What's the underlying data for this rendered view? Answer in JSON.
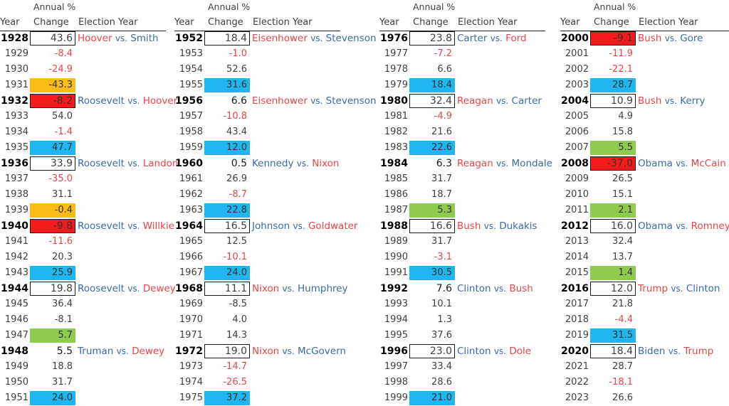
{
  "headers": {
    "annual": "Annual %",
    "year": "Year",
    "change": "Change",
    "election": "Election Year",
    "vs": "vs."
  },
  "colors": {
    "red_text": "#e8464b",
    "blue_text": "#3b6aa8",
    "cyan": "#1fb6f0",
    "green": "#8fcb4f",
    "orange": "#fbbc1a",
    "red": "#f71a1a"
  },
  "panels": [
    {
      "rows": [
        {
          "year": "1928",
          "value": "43.6",
          "election": true,
          "dem": "Smith",
          "rep": "Hoover",
          "first": "Hoover",
          "second": "Smith"
        },
        {
          "year": "1929",
          "value": "-8.4"
        },
        {
          "year": "1930",
          "value": "-24.9"
        },
        {
          "year": "1931",
          "value": "-43.3",
          "fill": "orange"
        },
        {
          "year": "1932",
          "value": "-8.2",
          "election": true,
          "fill": "red",
          "first": "Roosevelt",
          "second": "Hoover"
        },
        {
          "year": "1933",
          "value": "54.0"
        },
        {
          "year": "1934",
          "value": "-1.4"
        },
        {
          "year": "1935",
          "value": "47.7",
          "fill": "cyan"
        },
        {
          "year": "1936",
          "value": "33.9",
          "election": true,
          "first": "Roosevelt",
          "second": "Landon"
        },
        {
          "year": "1937",
          "value": "-35.0"
        },
        {
          "year": "1938",
          "value": "31.1"
        },
        {
          "year": "1939",
          "value": "-0.4",
          "fill": "orange"
        },
        {
          "year": "1940",
          "value": "-9.8",
          "election": true,
          "fill": "red",
          "first": "Roosevelt",
          "second": "Willkie"
        },
        {
          "year": "1941",
          "value": "-11.6"
        },
        {
          "year": "1942",
          "value": "20.3"
        },
        {
          "year": "1943",
          "value": "25.9",
          "fill": "cyan"
        },
        {
          "year": "1944",
          "value": "19.8",
          "election": true,
          "first": "Roosevelt",
          "second": "Dewey"
        },
        {
          "year": "1945",
          "value": "36.4"
        },
        {
          "year": "1946",
          "value": "-8.1",
          "black": true
        },
        {
          "year": "1947",
          "value": "5.7",
          "fill": "green"
        },
        {
          "year": "1948",
          "value": "5.5",
          "election": true,
          "nobox": true,
          "first": "Truman",
          "second": "Dewey"
        },
        {
          "year": "1949",
          "value": "18.8"
        },
        {
          "year": "1950",
          "value": "31.7"
        },
        {
          "year": "1951",
          "value": "24.0",
          "fill": "cyan"
        }
      ]
    },
    {
      "rows": [
        {
          "year": "1952",
          "value": "18.4",
          "election": true,
          "first": "Eisenhower",
          "second": "Stevenson"
        },
        {
          "year": "1953",
          "value": "-1.0"
        },
        {
          "year": "1954",
          "value": "52.6"
        },
        {
          "year": "1955",
          "value": "31.6",
          "fill": "cyan"
        },
        {
          "year": "1956",
          "value": "6.6",
          "election": true,
          "nobox": true,
          "first": "Eisenhower",
          "second": "Stevenson"
        },
        {
          "year": "1957",
          "value": "-10.8"
        },
        {
          "year": "1958",
          "value": "43.4"
        },
        {
          "year": "1959",
          "value": "12.0",
          "fill": "cyan"
        },
        {
          "year": "1960",
          "value": "0.5",
          "election": true,
          "nobox": true,
          "first": "Kennedy",
          "second": "Nixon"
        },
        {
          "year": "1961",
          "value": "26.9"
        },
        {
          "year": "1962",
          "value": "-8.7"
        },
        {
          "year": "1963",
          "value": "22.8",
          "fill": "cyan"
        },
        {
          "year": "1964",
          "value": "16.5",
          "election": true,
          "first": "Johnson",
          "second": "Goldwater"
        },
        {
          "year": "1965",
          "value": "12.5"
        },
        {
          "year": "1966",
          "value": "-10.1"
        },
        {
          "year": "1967",
          "value": "24.0",
          "fill": "cyan"
        },
        {
          "year": "1968",
          "value": "11.1",
          "election": true,
          "first": "Nixon",
          "second": "Humphrey"
        },
        {
          "year": "1969",
          "value": "-8.5",
          "black": true
        },
        {
          "year": "1970",
          "value": "4.0"
        },
        {
          "year": "1971",
          "value": "14.3"
        },
        {
          "year": "1972",
          "value": "19.0",
          "election": true,
          "first": "Nixon",
          "second": "McGovern"
        },
        {
          "year": "1973",
          "value": "-14.7"
        },
        {
          "year": "1974",
          "value": "-26.5"
        },
        {
          "year": "1975",
          "value": "37.2",
          "fill": "cyan"
        }
      ]
    },
    {
      "rows": [
        {
          "year": "1976",
          "value": "23.8",
          "election": true,
          "first": "Carter",
          "second": "Ford"
        },
        {
          "year": "1977",
          "value": "-7.2"
        },
        {
          "year": "1978",
          "value": "6.6"
        },
        {
          "year": "1979",
          "value": "18.4",
          "fill": "cyan"
        },
        {
          "year": "1980",
          "value": "32.4",
          "election": true,
          "first": "Reagan",
          "second": "Carter"
        },
        {
          "year": "1981",
          "value": "-4.9"
        },
        {
          "year": "1982",
          "value": "21.6"
        },
        {
          "year": "1983",
          "value": "22.6",
          "fill": "cyan"
        },
        {
          "year": "1984",
          "value": "6.3",
          "election": true,
          "nobox": true,
          "first": "Reagan",
          "second": "Mondale"
        },
        {
          "year": "1985",
          "value": "31.7"
        },
        {
          "year": "1986",
          "value": "18.7"
        },
        {
          "year": "1987",
          "value": "5.3",
          "fill": "green"
        },
        {
          "year": "1988",
          "value": "16.6",
          "election": true,
          "first": "Bush",
          "second": "Dukakis"
        },
        {
          "year": "1989",
          "value": "31.7"
        },
        {
          "year": "1990",
          "value": "-3.1"
        },
        {
          "year": "1991",
          "value": "30.5",
          "fill": "cyan"
        },
        {
          "year": "1992",
          "value": "7.6",
          "election": true,
          "nobox": true,
          "first": "Clinton",
          "second": "Bush"
        },
        {
          "year": "1993",
          "value": "10.1"
        },
        {
          "year": "1994",
          "value": "1.3"
        },
        {
          "year": "1995",
          "value": "37.6"
        },
        {
          "year": "1996",
          "value": "23.0",
          "election": true,
          "first": "Clinton",
          "second": "Dole"
        },
        {
          "year": "1997",
          "value": "33.4"
        },
        {
          "year": "1998",
          "value": "28.6"
        },
        {
          "year": "1999",
          "value": "21.0",
          "fill": "cyan"
        }
      ]
    },
    {
      "rows": [
        {
          "year": "2000",
          "value": "-9.1",
          "election": true,
          "fill": "red",
          "first": "Bush",
          "second": "Gore"
        },
        {
          "year": "2001",
          "value": "-11.9"
        },
        {
          "year": "2002",
          "value": "-22.1"
        },
        {
          "year": "2003",
          "value": "28.7",
          "fill": "cyan"
        },
        {
          "year": "2004",
          "value": "10.9",
          "election": true,
          "first": "Bush",
          "second": "Kerry"
        },
        {
          "year": "2005",
          "value": "4.9"
        },
        {
          "year": "2006",
          "value": "15.8"
        },
        {
          "year": "2007",
          "value": "5.5",
          "fill": "green"
        },
        {
          "year": "2008",
          "value": "-37.0",
          "election": true,
          "fill": "red",
          "first": "Obama",
          "second": "McCain"
        },
        {
          "year": "2009",
          "value": "26.5"
        },
        {
          "year": "2010",
          "value": "15.1"
        },
        {
          "year": "2011",
          "value": "2.1",
          "fill": "green"
        },
        {
          "year": "2012",
          "value": "16.0",
          "election": true,
          "first": "Obama",
          "second": "Romney"
        },
        {
          "year": "2013",
          "value": "32.4"
        },
        {
          "year": "2014",
          "value": "13.7"
        },
        {
          "year": "2015",
          "value": "1.4",
          "fill": "green"
        },
        {
          "year": "2016",
          "value": "12.0",
          "election": true,
          "first": "Trump",
          "second": "Clinton"
        },
        {
          "year": "2017",
          "value": "21.8"
        },
        {
          "year": "2018",
          "value": "-4.4"
        },
        {
          "year": "2019",
          "value": "31.5",
          "fill": "cyan"
        },
        {
          "year": "2020",
          "value": "18.4",
          "election": true,
          "first": "Biden",
          "second": "Trump"
        },
        {
          "year": "2021",
          "value": "28.7"
        },
        {
          "year": "2022",
          "value": "-18.1"
        },
        {
          "year": "2023",
          "value": "26.6"
        }
      ]
    }
  ],
  "party": {
    "Hoover": "rep",
    "Smith": "dem",
    "Roosevelt": "dem",
    "Landon": "rep",
    "Willkie": "rep",
    "Dewey": "rep",
    "Truman": "dem",
    "Eisenhower": "rep",
    "Stevenson": "dem",
    "Kennedy": "dem",
    "Nixon": "rep",
    "Johnson": "dem",
    "Goldwater": "rep",
    "Humphrey": "dem",
    "McGovern": "dem",
    "Carter": "dem",
    "Ford": "rep",
    "Reagan": "rep",
    "Mondale": "dem",
    "Bush": "rep",
    "Dukakis": "dem",
    "Clinton": "dem",
    "Dole": "rep",
    "Gore": "dem",
    "Kerry": "dem",
    "Obama": "dem",
    "McCain": "rep",
    "Romney": "rep",
    "Trump": "rep",
    "Biden": "dem"
  }
}
